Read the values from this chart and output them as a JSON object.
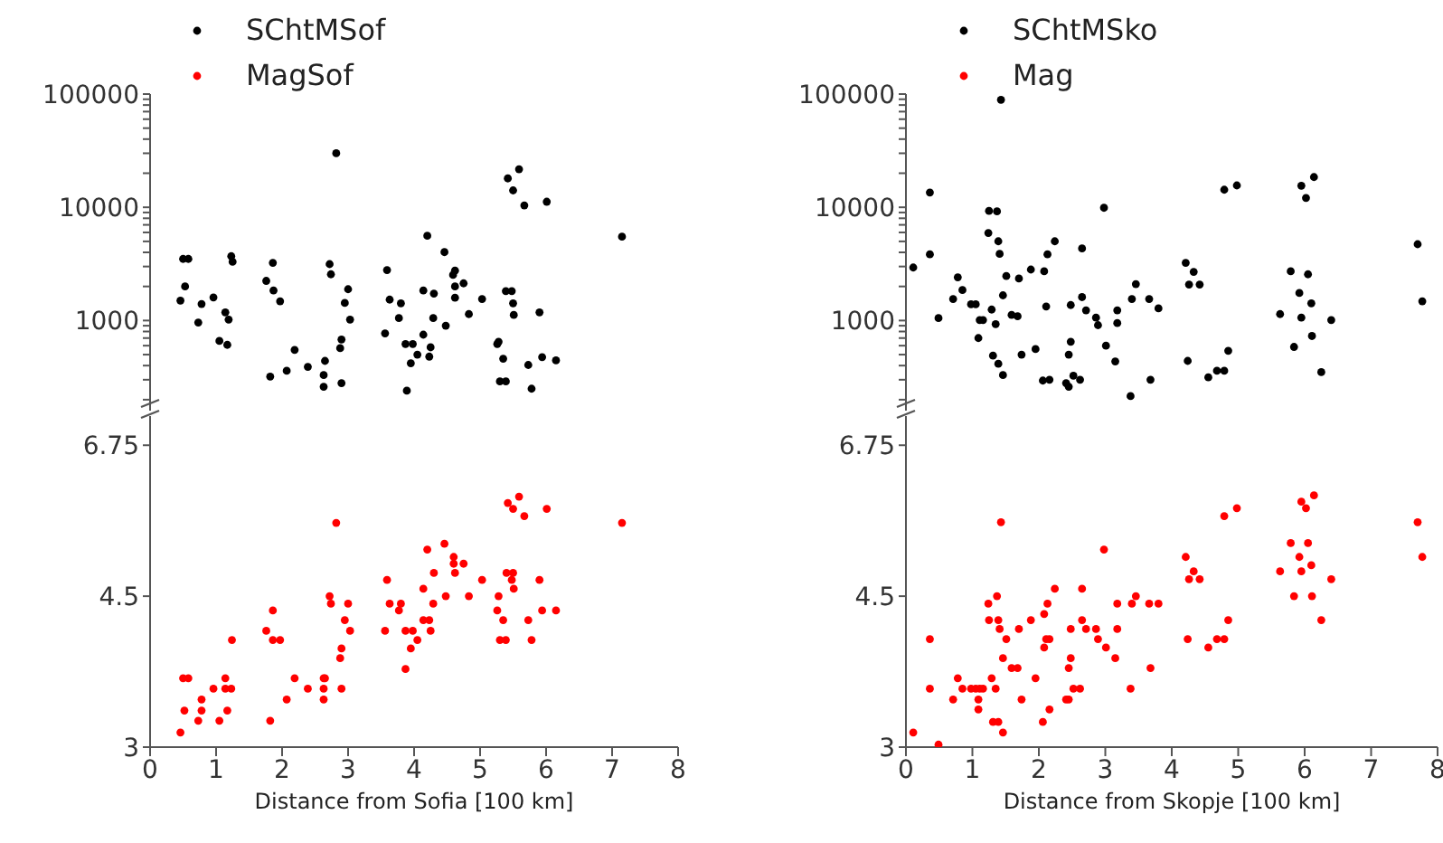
{
  "chart_data": [
    {
      "type": "scatter",
      "legend": "top left",
      "marker": "circle",
      "log": true,
      "tick_labels": "y",
      "xlim": [
        0,
        8
      ],
      "ylim": [
        160,
        100000
      ],
      "yticks": [
        {
          "value": 200,
          "label": null
        },
        {
          "value": 300,
          "label": null
        },
        {
          "value": 400,
          "label": null
        },
        {
          "value": 500,
          "label": null
        },
        {
          "value": 600,
          "label": null
        },
        {
          "value": 700,
          "label": null
        },
        {
          "value": 800,
          "label": null
        },
        {
          "value": 900,
          "label": null
        },
        1000,
        {
          "value": 2000,
          "label": null
        },
        {
          "value": 3000,
          "label": null
        },
        {
          "value": 4000,
          "label": null
        },
        {
          "value": 5000,
          "label": null
        },
        {
          "value": 6000,
          "label": null
        },
        {
          "value": 7000,
          "label": null
        },
        {
          "value": 8000,
          "label": null
        },
        {
          "value": 9000,
          "label": null
        },
        10000,
        {
          "value": 20000,
          "label": null
        },
        {
          "value": 30000,
          "label": null
        },
        {
          "value": 40000,
          "label": null
        },
        {
          "value": 50000,
          "label": null
        },
        {
          "value": 60000,
          "label": null
        },
        {
          "value": 70000,
          "label": null
        },
        {
          "value": 80000,
          "label": null
        },
        {
          "value": 90000,
          "label": null
        },
        100000
      ],
      "x": [
        0.46,
        0.5,
        0.58,
        0.53,
        0.73,
        0.78,
        0.96,
        1.05,
        1.14,
        1.17,
        1.19,
        1.23,
        1.25,
        1.76,
        1.86,
        1.87,
        1.97,
        1.82,
        2.07,
        2.19,
        2.39,
        2.65,
        2.63,
        2.63,
        2.72,
        2.74,
        2.82,
        2.9,
        2.9,
        2.88,
        2.95,
        3.0,
        3.03,
        3.56,
        3.59,
        3.63,
        3.77,
        3.8,
        3.87,
        3.89,
        3.95,
        3.98,
        4.05,
        4.14,
        4.14,
        4.2,
        4.23,
        4.25,
        4.29,
        4.3,
        4.46,
        4.48,
        4.59,
        4.62,
        4.62,
        4.62,
        4.75,
        4.83,
        5.03,
        5.26,
        5.28,
        5.35,
        5.3,
        5.39,
        5.42,
        5.5,
        5.59,
        5.48,
        5.5,
        5.51,
        5.39,
        5.67,
        5.9,
        5.94,
        5.73,
        5.78,
        6.01,
        6.15,
        7.15
      ],
      "series": [
        {
          "name": "SChtMSof",
          "color": "#000000",
          "values": [
            1500,
            3500,
            3500,
            2000,
            960,
            1400,
            1600,
            660,
            1180,
            610,
            1020,
            3700,
            3300,
            2240,
            3230,
            1840,
            1480,
            320,
            360,
            550,
            390,
            440,
            330,
            260,
            3150,
            2560,
            30000,
            280,
            680,
            570,
            1430,
            1890,
            1020,
            770,
            2790,
            1530,
            1050,
            1420,
            620,
            240,
            420,
            620,
            500,
            750,
            1840,
            5600,
            480,
            580,
            1050,
            1730,
            4020,
            900,
            2530,
            2760,
            2000,
            1590,
            2130,
            1140,
            1550,
            620,
            650,
            460,
            290,
            290,
            18000,
            14100,
            21700,
            1820,
            1420,
            1120,
            1820,
            10400,
            1180,
            475,
            405,
            250,
            11200,
            445,
            5500
          ]
        }
      ]
    },
    {
      "type": "scatter",
      "legend": "top left",
      "marker": "circle",
      "log": true,
      "xlim": [
        0,
        8
      ],
      "xticks": [
        0,
        1,
        2,
        3,
        4,
        5,
        6,
        7,
        8
      ],
      "ylim": [
        3,
        7.3
      ],
      "yticks": [
        3,
        4.5,
        6.75
      ],
      "xlabel": "Distance from Sofia [100 km]",
      "x": [
        0.46,
        0.5,
        0.58,
        0.52,
        0.73,
        0.78,
        0.78,
        0.96,
        1.05,
        1.14,
        1.17,
        1.14,
        1.23,
        1.24,
        1.76,
        1.86,
        1.86,
        1.97,
        1.82,
        2.07,
        2.19,
        2.39,
        2.63,
        2.65,
        2.63,
        2.63,
        2.72,
        2.74,
        2.82,
        2.9,
        2.88,
        2.9,
        2.95,
        3.0,
        3.03,
        3.56,
        3.59,
        3.63,
        3.77,
        3.8,
        3.87,
        3.87,
        3.98,
        3.95,
        4.05,
        4.14,
        4.14,
        4.2,
        4.23,
        4.25,
        4.29,
        4.3,
        4.46,
        4.48,
        4.6,
        4.6,
        4.62,
        4.75,
        4.83,
        5.03,
        5.28,
        5.26,
        5.35,
        5.3,
        5.39,
        5.42,
        5.5,
        5.59,
        5.4,
        5.5,
        5.48,
        5.51,
        5.67,
        5.9,
        5.94,
        5.73,
        5.78,
        6.01,
        6.15,
        7.15
      ],
      "series": [
        {
          "name": "MagSof",
          "color": "#ff0000",
          "values": [
            3.12,
            3.61,
            3.61,
            3.31,
            3.22,
            3.41,
            3.31,
            3.51,
            3.22,
            3.61,
            3.31,
            3.51,
            3.51,
            4.0,
            4.1,
            4.33,
            4.0,
            4.0,
            3.22,
            3.41,
            3.61,
            3.51,
            3.61,
            3.61,
            3.51,
            3.41,
            4.5,
            4.41,
            5.48,
            3.51,
            3.81,
            3.91,
            4.22,
            4.41,
            4.1,
            4.1,
            4.7,
            4.41,
            4.33,
            4.41,
            4.1,
            3.7,
            4.1,
            3.91,
            4.0,
            4.59,
            4.22,
            5.1,
            4.22,
            4.1,
            4.41,
            4.79,
            5.18,
            4.5,
            5.0,
            4.91,
            4.79,
            4.91,
            4.5,
            4.7,
            4.5,
            4.33,
            4.22,
            4.0,
            4.0,
            5.78,
            5.69,
            5.88,
            4.79,
            4.79,
            4.7,
            4.59,
            5.58,
            4.7,
            4.33,
            4.22,
            4.0,
            5.69,
            4.33,
            5.48
          ]
        }
      ]
    },
    {
      "type": "scatter",
      "legend": "top left",
      "marker": "circle",
      "log": true,
      "tick_labels": "y",
      "xlim": [
        0,
        8
      ],
      "ylim": [
        160,
        100000
      ],
      "yticks": [
        {
          "value": 200,
          "label": null
        },
        {
          "value": 300,
          "label": null
        },
        {
          "value": 400,
          "label": null
        },
        {
          "value": 500,
          "label": null
        },
        {
          "value": 600,
          "label": null
        },
        {
          "value": 700,
          "label": null
        },
        {
          "value": 800,
          "label": null
        },
        {
          "value": 900,
          "label": null
        },
        1000,
        {
          "value": 2000,
          "label": null
        },
        {
          "value": 3000,
          "label": null
        },
        {
          "value": 4000,
          "label": null
        },
        {
          "value": 5000,
          "label": null
        },
        {
          "value": 6000,
          "label": null
        },
        {
          "value": 7000,
          "label": null
        },
        {
          "value": 8000,
          "label": null
        },
        {
          "value": 9000,
          "label": null
        },
        10000,
        {
          "value": 20000,
          "label": null
        },
        {
          "value": 30000,
          "label": null
        },
        {
          "value": 40000,
          "label": null
        },
        {
          "value": 50000,
          "label": null
        },
        {
          "value": 60000,
          "label": null
        },
        {
          "value": 70000,
          "label": null
        },
        {
          "value": 80000,
          "label": null
        },
        {
          "value": 90000,
          "label": null
        },
        100000
      ],
      "x": [
        0.11,
        0.36,
        0.36,
        0.49,
        0.71,
        0.78,
        0.85,
        0.98,
        1.05,
        1.09,
        1.11,
        1.16,
        1.24,
        1.25,
        1.37,
        1.39,
        1.41,
        1.29,
        1.35,
        1.31,
        1.39,
        1.46,
        1.43,
        1.46,
        1.51,
        1.59,
        1.68,
        1.7,
        1.74,
        1.88,
        1.95,
        2.06,
        2.08,
        2.11,
        2.13,
        2.16,
        2.24,
        2.41,
        2.45,
        2.48,
        2.48,
        2.45,
        2.52,
        2.62,
        2.65,
        2.65,
        2.71,
        2.86,
        2.89,
        2.98,
        3.01,
        3.15,
        3.18,
        3.18,
        3.46,
        3.38,
        3.4,
        3.66,
        3.68,
        3.8,
        4.21,
        4.24,
        4.26,
        4.33,
        4.42,
        4.55,
        4.68,
        4.79,
        4.85,
        4.79,
        4.98,
        5.63,
        5.79,
        5.84,
        5.92,
        5.95,
        5.95,
        6.02,
        6.05,
        6.1,
        6.11,
        6.14,
        6.25,
        6.4,
        7.7,
        7.77
      ],
      "series": [
        {
          "name": "SChtMSko",
          "color": "#000000",
          "values": [
            2940,
            13500,
            3840,
            1050,
            1550,
            2410,
            1860,
            1390,
            1390,
            700,
            1010,
            1010,
            5930,
            9300,
            9200,
            5010,
            3880,
            1250,
            930,
            490,
            415,
            330,
            89000,
            1670,
            2470,
            1120,
            1090,
            2350,
            500,
            2820,
            560,
            295,
            2720,
            1330,
            3840,
            300,
            5010,
            280,
            260,
            1370,
            650,
            500,
            325,
            300,
            4330,
            1610,
            1230,
            1060,
            910,
            9900,
            600,
            435,
            1230,
            950,
            2100,
            215,
            1550,
            1550,
            300,
            1280,
            3230,
            440,
            2080,
            2690,
            2080,
            315,
            360,
            360,
            540,
            14300,
            15600,
            1140,
            2720,
            585,
            1750,
            1060,
            15500,
            12100,
            2560,
            1420,
            730,
            18500,
            350,
            1010,
            4720,
            1480
          ]
        }
      ]
    },
    {
      "type": "scatter",
      "legend": "top left",
      "marker": "circle",
      "log": true,
      "xlim": [
        0,
        8
      ],
      "xticks": [
        0,
        1,
        2,
        3,
        4,
        5,
        6,
        7,
        8
      ],
      "ylim": [
        3,
        7.3
      ],
      "yticks": [
        3,
        4.5,
        6.75
      ],
      "xlabel": "Distance from Skopje [100 km]",
      "x": [
        0.11,
        0.36,
        0.36,
        0.49,
        0.71,
        0.78,
        0.85,
        0.98,
        1.05,
        1.11,
        1.16,
        1.09,
        1.09,
        1.24,
        1.25,
        1.37,
        1.39,
        1.41,
        1.29,
        1.35,
        1.31,
        1.39,
        1.46,
        1.43,
        1.46,
        1.51,
        1.59,
        1.68,
        1.7,
        1.74,
        1.88,
        1.95,
        2.06,
        2.08,
        2.08,
        2.13,
        2.11,
        2.16,
        2.16,
        2.24,
        2.41,
        2.45,
        2.48,
        2.48,
        2.45,
        2.52,
        2.62,
        2.65,
        2.65,
        2.71,
        2.86,
        2.89,
        2.98,
        3.01,
        3.15,
        3.18,
        3.18,
        3.46,
        3.38,
        3.4,
        3.66,
        3.8,
        3.68,
        4.21,
        4.24,
        4.26,
        4.33,
        4.42,
        4.55,
        4.68,
        4.79,
        4.85,
        4.79,
        4.98,
        5.63,
        5.79,
        5.84,
        5.92,
        5.95,
        5.95,
        6.02,
        6.05,
        6.1,
        6.11,
        6.14,
        6.25,
        6.4,
        7.7,
        7.77
      ],
      "series": [
        {
          "name": "Mag",
          "color": "#ff0000",
          "values": [
            3.12,
            4.01,
            3.51,
            3.02,
            3.41,
            3.61,
            3.51,
            3.51,
            3.51,
            3.51,
            3.51,
            3.41,
            3.32,
            4.41,
            4.22,
            4.5,
            4.22,
            4.12,
            3.61,
            3.51,
            3.21,
            3.21,
            3.12,
            5.49,
            3.81,
            4.01,
            3.71,
            3.71,
            4.12,
            3.41,
            4.22,
            3.61,
            3.21,
            4.29,
            3.92,
            4.41,
            4.01,
            4.01,
            3.32,
            4.59,
            3.41,
            3.41,
            3.81,
            4.12,
            3.71,
            3.51,
            3.51,
            4.59,
            4.22,
            4.12,
            4.12,
            4.01,
            5.1,
            3.92,
            3.81,
            4.41,
            4.12,
            4.5,
            3.51,
            4.41,
            4.41,
            4.41,
            3.71,
            5.0,
            4.01,
            4.71,
            4.81,
            4.71,
            3.92,
            4.01,
            4.01,
            4.22,
            5.58,
            5.7,
            4.81,
            5.19,
            4.5,
            5.0,
            4.81,
            5.8,
            5.7,
            5.19,
            4.89,
            4.5,
            5.9,
            4.22,
            4.71,
            5.49,
            5.0
          ]
        }
      ]
    }
  ]
}
